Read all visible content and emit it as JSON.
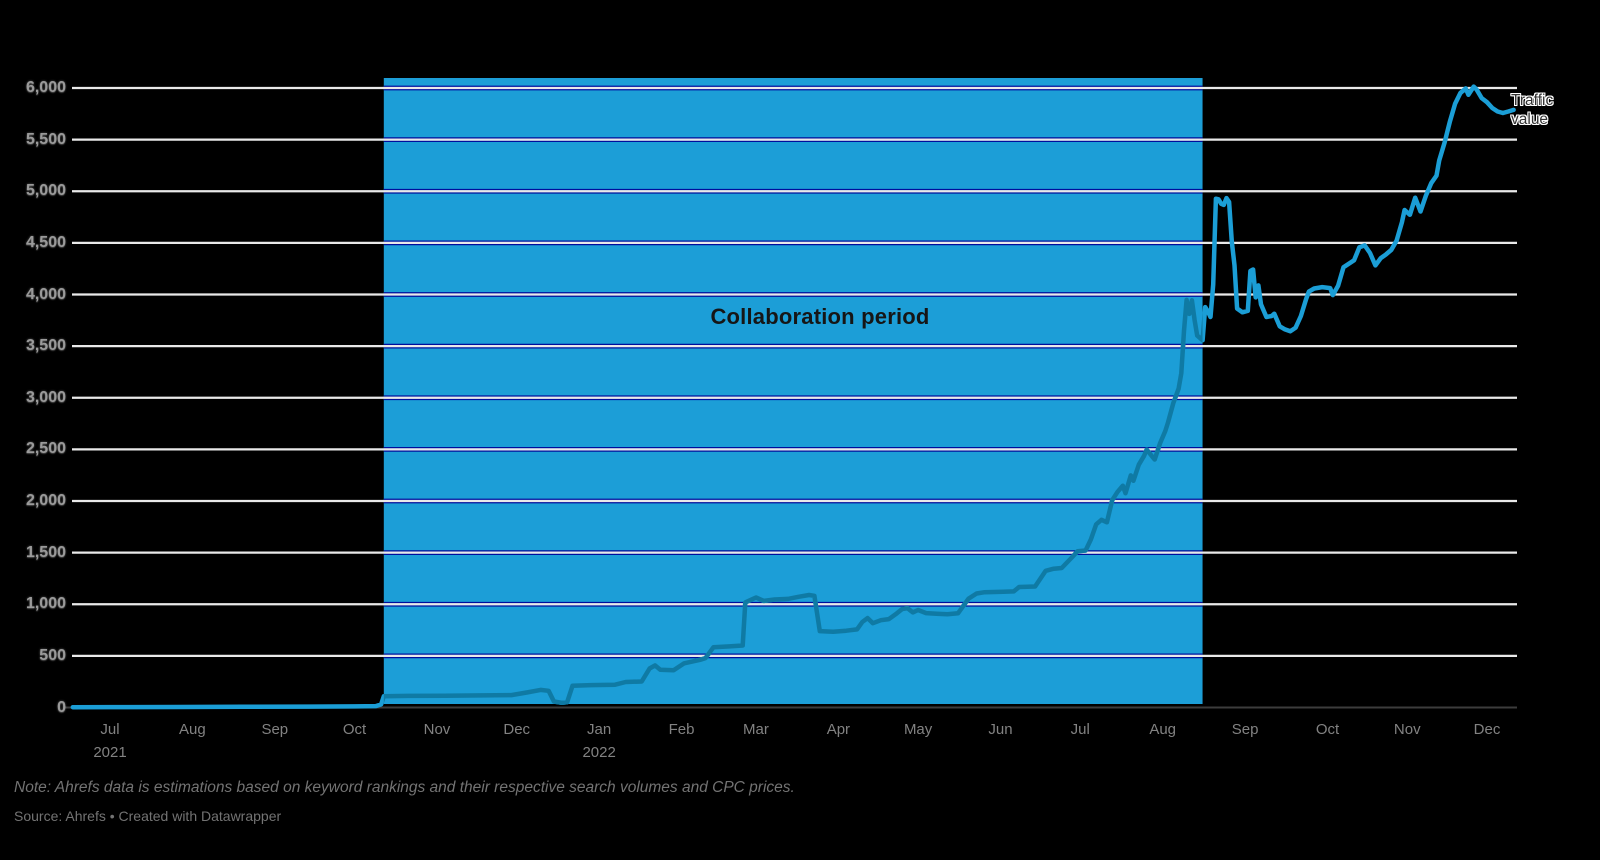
{
  "chart": {
    "note": "Note: Ahrefs data is estimations based on keyword rankings and their respective search volumes and CPC prices.",
    "source": "Source: Ahrefs • Created with Datawrapper",
    "series_label_line1": "Traffic",
    "series_label_line2": "value",
    "background_color": "#000000"
  },
  "chart_data": {
    "type": "line",
    "title": "",
    "legend_position": "end-of-line-label",
    "grid": true,
    "colors": {
      "line": "#1b9ed6",
      "line_inside_band": "#0f7aa4",
      "band": "#1c9ed7",
      "gridline": "#e9e9e9",
      "gridline_band_edge": "#000e9c",
      "baseline": "#3c3c3c",
      "ytick_text": "#9a9a9a",
      "xtick_text": "#828282",
      "band_label_text": "#161616"
    },
    "y_axis": {
      "min": 0,
      "max": 6100,
      "tick_step": 500,
      "ticks": [
        0,
        500,
        1000,
        1500,
        2000,
        2500,
        3000,
        3500,
        4000,
        4500,
        5000,
        5500,
        6000
      ],
      "tick_labels": [
        "0",
        "500",
        "1,000",
        "1,500",
        "2,000",
        "2,500",
        "3,000",
        "3,500",
        "4,000",
        "4,500",
        "5,000",
        "5,500",
        "6,000"
      ]
    },
    "x_axis": {
      "epoch": "2021-07-01",
      "unit": "days since epoch",
      "months": [
        {
          "label": "Jul",
          "year": "2021",
          "day": 0
        },
        {
          "label": "Aug",
          "day": 31
        },
        {
          "label": "Sep",
          "day": 62
        },
        {
          "label": "Oct",
          "day": 92
        },
        {
          "label": "Nov",
          "day": 123
        },
        {
          "label": "Dec",
          "day": 153
        },
        {
          "label": "Jan",
          "year": "2022",
          "day": 184
        },
        {
          "label": "Feb",
          "day": 215
        },
        {
          "label": "Mar",
          "day": 243
        },
        {
          "label": "Apr",
          "day": 274
        },
        {
          "label": "May",
          "day": 304
        },
        {
          "label": "Jun",
          "day": 335
        },
        {
          "label": "Jul",
          "day": 365
        },
        {
          "label": "Aug",
          "day": 396
        },
        {
          "label": "Sep",
          "day": 427
        },
        {
          "label": "Oct",
          "day": 458
        },
        {
          "label": "Nov",
          "day": 488
        },
        {
          "label": "Dec",
          "day": 518
        }
      ]
    },
    "highlight": {
      "label": "Collaboration period",
      "start_day": 103,
      "start_date_approx": "2021-10-12",
      "end_day": 411,
      "end_date_approx": "2022-08-15"
    },
    "series": [
      {
        "name": "Traffic value",
        "points": [
          [
            -14,
            3
          ],
          [
            0,
            4
          ],
          [
            25,
            5
          ],
          [
            50,
            7
          ],
          [
            75,
            9
          ],
          [
            92,
            11
          ],
          [
            100,
            14
          ],
          [
            102,
            30
          ],
          [
            103,
            108
          ],
          [
            112,
            112
          ],
          [
            126,
            114
          ],
          [
            140,
            117
          ],
          [
            151,
            120
          ],
          [
            157,
            146
          ],
          [
            162,
            170
          ],
          [
            165,
            162
          ],
          [
            167,
            58
          ],
          [
            170,
            46
          ],
          [
            172,
            52
          ],
          [
            174,
            210
          ],
          [
            181,
            217
          ],
          [
            190,
            221
          ],
          [
            194,
            247
          ],
          [
            200,
            252
          ],
          [
            203,
            378
          ],
          [
            205,
            408
          ],
          [
            207,
            366
          ],
          [
            212,
            360
          ],
          [
            216,
            428
          ],
          [
            219,
            445
          ],
          [
            222,
            462
          ],
          [
            224,
            478
          ],
          [
            227,
            583
          ],
          [
            233,
            592
          ],
          [
            238,
            600
          ],
          [
            239,
            1018
          ],
          [
            241,
            1042
          ],
          [
            243,
            1065
          ],
          [
            246,
            1032
          ],
          [
            250,
            1046
          ],
          [
            255,
            1052
          ],
          [
            259,
            1072
          ],
          [
            263,
            1090
          ],
          [
            265,
            1082
          ],
          [
            267,
            740
          ],
          [
            272,
            733
          ],
          [
            277,
            744
          ],
          [
            281,
            756
          ],
          [
            283,
            828
          ],
          [
            285,
            866
          ],
          [
            287,
            816
          ],
          [
            290,
            846
          ],
          [
            293,
            856
          ],
          [
            296,
            912
          ],
          [
            298,
            954
          ],
          [
            300,
            962
          ],
          [
            302,
            921
          ],
          [
            304,
            944
          ],
          [
            307,
            914
          ],
          [
            311,
            908
          ],
          [
            315,
            903
          ],
          [
            319,
            912
          ],
          [
            323,
            1055
          ],
          [
            326,
            1104
          ],
          [
            329,
            1117
          ],
          [
            336,
            1121
          ],
          [
            340,
            1124
          ],
          [
            342,
            1167
          ],
          [
            348,
            1172
          ],
          [
            352,
            1324
          ],
          [
            355,
            1344
          ],
          [
            358,
            1351
          ],
          [
            362,
            1458
          ],
          [
            364,
            1514
          ],
          [
            367,
            1521
          ],
          [
            369,
            1628
          ],
          [
            371,
            1774
          ],
          [
            373,
            1818
          ],
          [
            375,
            1794
          ],
          [
            377,
            2008
          ],
          [
            379,
            2088
          ],
          [
            381,
            2148
          ],
          [
            382,
            2076
          ],
          [
            384,
            2248
          ],
          [
            385,
            2196
          ],
          [
            387,
            2352
          ],
          [
            389,
            2438
          ],
          [
            390,
            2498
          ],
          [
            392,
            2432
          ],
          [
            393,
            2402
          ],
          [
            395,
            2558
          ],
          [
            397,
            2678
          ],
          [
            398,
            2760
          ],
          [
            400,
            2948
          ],
          [
            402,
            3088
          ],
          [
            403,
            3238
          ],
          [
            404,
            3648
          ],
          [
            405,
            3948
          ],
          [
            406,
            3812
          ],
          [
            407,
            3944
          ],
          [
            408,
            3752
          ],
          [
            409,
            3602
          ],
          [
            411,
            3556
          ],
          [
            412,
            3878
          ],
          [
            413,
            3836
          ],
          [
            414,
            3782
          ],
          [
            415,
            4096
          ],
          [
            416,
            4928
          ],
          [
            417,
            4922
          ],
          [
            418,
            4878
          ],
          [
            419,
            4868
          ],
          [
            420,
            4934
          ],
          [
            421,
            4896
          ],
          [
            422,
            4512
          ],
          [
            423,
            4282
          ],
          [
            424,
            3864
          ],
          [
            426,
            3828
          ],
          [
            428,
            3842
          ],
          [
            429,
            4228
          ],
          [
            430,
            4242
          ],
          [
            431,
            3972
          ],
          [
            432,
            4088
          ],
          [
            433,
            3904
          ],
          [
            435,
            3782
          ],
          [
            437,
            3792
          ],
          [
            438,
            3814
          ],
          [
            440,
            3692
          ],
          [
            442,
            3662
          ],
          [
            444,
            3644
          ],
          [
            446,
            3678
          ],
          [
            448,
            3792
          ],
          [
            450,
            3958
          ],
          [
            451,
            4028
          ],
          [
            453,
            4058
          ],
          [
            456,
            4072
          ],
          [
            459,
            4062
          ],
          [
            460,
            3994
          ],
          [
            462,
            4084
          ],
          [
            464,
            4264
          ],
          [
            466,
            4298
          ],
          [
            468,
            4332
          ],
          [
            470,
            4458
          ],
          [
            472,
            4476
          ],
          [
            474,
            4402
          ],
          [
            476,
            4282
          ],
          [
            478,
            4352
          ],
          [
            480,
            4388
          ],
          [
            482,
            4432
          ],
          [
            484,
            4522
          ],
          [
            486,
            4698
          ],
          [
            487,
            4818
          ],
          [
            489,
            4772
          ],
          [
            491,
            4938
          ],
          [
            493,
            4804
          ],
          [
            495,
            4958
          ],
          [
            497,
            5078
          ],
          [
            499,
            5152
          ],
          [
            500,
            5298
          ],
          [
            502,
            5468
          ],
          [
            504,
            5672
          ],
          [
            506,
            5848
          ],
          [
            508,
            5952
          ],
          [
            510,
            5996
          ],
          [
            511,
            5934
          ],
          [
            513,
            6014
          ],
          [
            514,
            5988
          ],
          [
            516,
            5902
          ],
          [
            518,
            5862
          ],
          [
            520,
            5806
          ],
          [
            522,
            5772
          ],
          [
            524,
            5758
          ],
          [
            526,
            5772
          ],
          [
            528,
            5788
          ]
        ]
      }
    ],
    "note": "Note: Ahrefs data is estimations based on keyword rankings and their respective search volumes and CPC prices.",
    "source": "Source: Ahrefs • Created with Datawrapper"
  }
}
